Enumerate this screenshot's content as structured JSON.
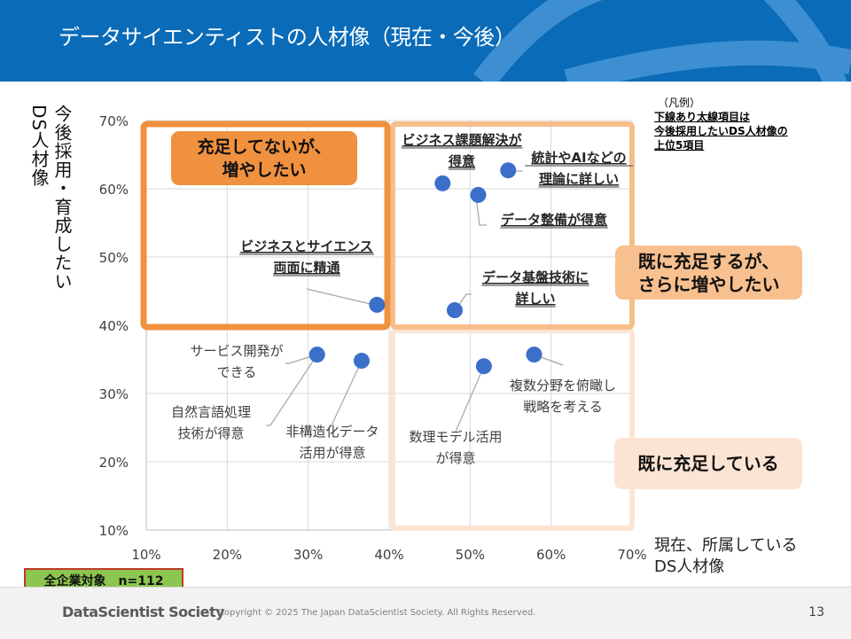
{
  "header": {
    "title": "データサイエンティストの人材像（現在・今後）"
  },
  "legend_note": {
    "heading": "（凡例）",
    "lines": [
      "下線あり太線項目は",
      "今後採用したいDS人材像の",
      "上位5項目"
    ]
  },
  "axis_titles": {
    "y_col1": "今後採用・育成したい",
    "y_col2": "DS人材像",
    "x_line1": "現在、所属している",
    "x_line2": "DS人材像"
  },
  "quadrants": {
    "top_left": "充足してないが、\n増やしたい",
    "top_right": "既に充足するが、\nさらに増やしたい",
    "bottom_right": "既に充足している"
  },
  "colors": {
    "header_bg": "#0a6bb8",
    "header_arc": "#3d8fd1",
    "top_left_border": "#f0913f",
    "top_right_border": "#f7bd8a",
    "bottom_right_border": "#fce4d4",
    "top_left_label_bg": "#f0913f",
    "top_right_label_bg": "#f7c08e",
    "bottom_right_label_bg": "#fce4d4",
    "point": "#3b6fc9",
    "grid": "#d9d9d9",
    "badge_bg": "#8cc64e",
    "badge_border": "#c0392b"
  },
  "sample": {
    "label": "全企業対象　n=112"
  },
  "footer": {
    "org": "DataScientist Society",
    "copyright": "Copyright © 2025  The Japan DataScientist Society. All Rights Reserved.",
    "page": "13"
  },
  "chart_data": {
    "type": "scatter",
    "title": "データサイエンティストの人材像（現在・今後）",
    "xlabel": "現在、所属している DS人材像",
    "ylabel": "今後採用・育成したい DS人材像",
    "xlim": [
      10,
      70
    ],
    "ylim": [
      10,
      70
    ],
    "x_ticks": [
      "10%",
      "20%",
      "30%",
      "40%",
      "50%",
      "60%",
      "70%"
    ],
    "y_ticks": [
      "10%",
      "20%",
      "30%",
      "40%",
      "50%",
      "60%",
      "70%"
    ],
    "grid": true,
    "quadrant_split": {
      "x": 40,
      "y": 40
    },
    "points": [
      {
        "label": "ビジネスとサイエンス\n両面に精通",
        "x": 38.5,
        "y": 43.0,
        "top5": true
      },
      {
        "label": "ビジネス課題解決が\n得意",
        "x": 46.6,
        "y": 60.8,
        "top5": true
      },
      {
        "label": "統計やAIなどの\n理論に詳しい",
        "x": 54.7,
        "y": 62.7,
        "top5": true
      },
      {
        "label": "データ整備が得意",
        "x": 51.0,
        "y": 59.1,
        "top5": true
      },
      {
        "label": "データ基盤技術に\n詳しい",
        "x": 48.1,
        "y": 42.2,
        "top5": true
      },
      {
        "label": "サービス開発が\nできる",
        "x": 31.1,
        "y": 35.7,
        "top5": false
      },
      {
        "label": "自然言語処理\n技術が得意",
        "x": 31.1,
        "y": 35.7,
        "top5": false
      },
      {
        "label": "非構造化データ\n活用が得意",
        "x": 36.6,
        "y": 34.8,
        "top5": false
      },
      {
        "label": "数理モデル活用\nが得意",
        "x": 51.7,
        "y": 34.0,
        "top5": false
      },
      {
        "label": "複数分野を俯瞰し\n戦略を考える",
        "x": 57.9,
        "y": 35.7,
        "top5": false
      }
    ]
  }
}
